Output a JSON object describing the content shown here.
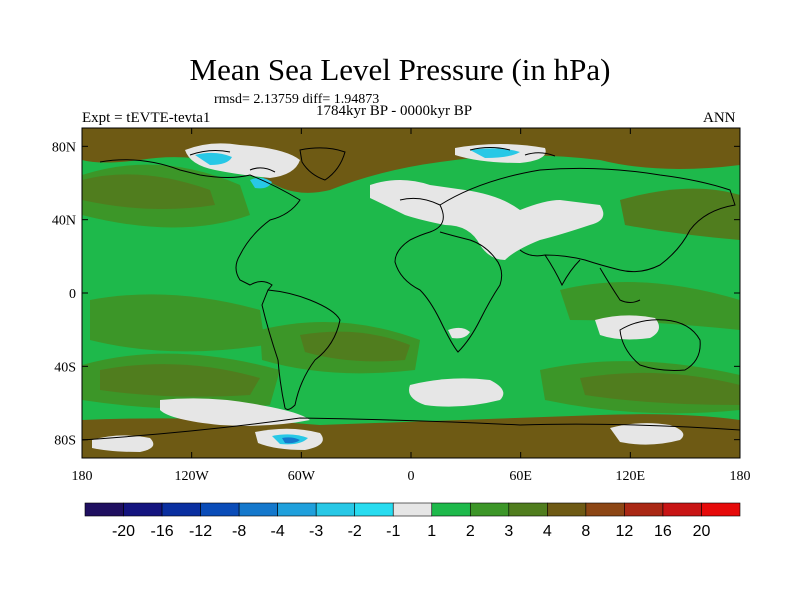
{
  "title": "Mean Sea Level Pressure (in hPa)",
  "subtitle": "rmsd= 2.13759 diff= 1.94873",
  "period": "1784kyr BP - 0000kyr BP",
  "expt_label": "Expt = tEVTE-tevta1",
  "season": "ANN",
  "lat_ticks": [
    "80N",
    "40N",
    "0",
    "40S",
    "80S"
  ],
  "lat_values": [
    80,
    40,
    0,
    -40,
    -80
  ],
  "lon_ticks": [
    "180",
    "120W",
    "60W",
    "0",
    "60E",
    "120E",
    "180"
  ],
  "lon_values": [
    -180,
    -120,
    -60,
    0,
    60,
    120,
    180
  ],
  "colorbar": {
    "labels": [
      "-20",
      "-16",
      "-12",
      "-8",
      "-4",
      "-3",
      "-2",
      "-1",
      "1",
      "2",
      "3",
      "4",
      "8",
      "12",
      "16",
      "20"
    ],
    "colors": [
      "#1f0f60",
      "#14147f",
      "#0a2fa0",
      "#0a4cb8",
      "#1478cc",
      "#1fa0dc",
      "#28c8e6",
      "#28dcf0",
      "#e6e6e6",
      "#1eb94b",
      "#3c9628",
      "#507d1e",
      "#6e5a14",
      "#8c4614",
      "#aa2814",
      "#c81414",
      "#e60a0a"
    ]
  },
  "field_colors": {
    "green_light": "#1eb94b",
    "green_mid": "#3c9628",
    "olive": "#507d1e",
    "brown": "#6e5a14",
    "white": "#e6e6e6",
    "cyan": "#28c8e6",
    "blue": "#1478cc"
  }
}
